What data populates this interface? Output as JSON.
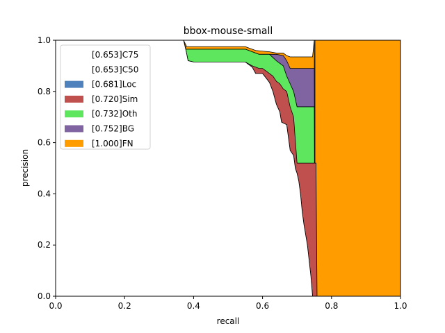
{
  "chart_data": {
    "type": "area",
    "title": "bbox-mouse-small",
    "xlabel": "recall",
    "ylabel": "precision",
    "xlim": [
      0.0,
      1.0
    ],
    "ylim": [
      0.0,
      1.0
    ],
    "x_ticks": [
      "0.0",
      "0.2",
      "0.4",
      "0.6",
      "0.8",
      "1.0"
    ],
    "y_ticks": [
      "0.0",
      "0.2",
      "0.4",
      "0.6",
      "0.8",
      "1.0"
    ],
    "legend_position": "upper-left",
    "legend": [
      {
        "label": "[0.653]C75",
        "color": "#ffffff"
      },
      {
        "label": "[0.653]C50",
        "color": "#ffffff"
      },
      {
        "label": "[0.681]Loc",
        "color": "#4f81bd"
      },
      {
        "label": "[0.720]Sim",
        "color": "#c0504d"
      },
      {
        "label": "[0.732]Oth",
        "color": "#5ee65e"
      },
      {
        "label": "[0.752]BG",
        "color": "#8064a2"
      },
      {
        "label": "[1.000]FN",
        "color": "#ff9c00"
      }
    ],
    "curves": [
      {
        "name": "[0.681]Loc",
        "color": "#4f81bd",
        "points": [
          [
            0.371,
            1.0
          ],
          [
            0.378,
            0.96
          ],
          [
            0.384,
            0.92
          ],
          [
            0.4,
            0.915
          ],
          [
            0.55,
            0.915
          ],
          [
            0.57,
            0.895
          ],
          [
            0.58,
            0.87
          ],
          [
            0.6,
            0.87
          ],
          [
            0.62,
            0.835
          ],
          [
            0.63,
            0.8
          ],
          [
            0.64,
            0.75
          ],
          [
            0.65,
            0.72
          ],
          [
            0.655,
            0.68
          ],
          [
            0.67,
            0.67
          ],
          [
            0.675,
            0.62
          ],
          [
            0.68,
            0.57
          ],
          [
            0.69,
            0.55
          ],
          [
            0.695,
            0.5
          ],
          [
            0.7,
            0.48
          ],
          [
            0.705,
            0.45
          ],
          [
            0.71,
            0.4
          ],
          [
            0.715,
            0.33
          ],
          [
            0.72,
            0.28
          ],
          [
            0.73,
            0.2
          ],
          [
            0.74,
            0.08
          ],
          [
            0.745,
            0.0
          ]
        ]
      },
      {
        "name": "[0.720]Sim",
        "color": "#c0504d",
        "points": [
          [
            0.371,
            1.0
          ],
          [
            0.378,
            0.96
          ],
          [
            0.384,
            0.92
          ],
          [
            0.4,
            0.915
          ],
          [
            0.55,
            0.915
          ],
          [
            0.57,
            0.9
          ],
          [
            0.59,
            0.89
          ],
          [
            0.6,
            0.89
          ],
          [
            0.62,
            0.87
          ],
          [
            0.63,
            0.86
          ],
          [
            0.64,
            0.84
          ],
          [
            0.65,
            0.83
          ],
          [
            0.66,
            0.81
          ],
          [
            0.67,
            0.8
          ],
          [
            0.68,
            0.74
          ],
          [
            0.69,
            0.7
          ],
          [
            0.7,
            0.52
          ],
          [
            0.755,
            0.52
          ],
          [
            0.758,
            0.0
          ]
        ]
      },
      {
        "name": "[0.732]Oth",
        "color": "#5ee65e",
        "points": [
          [
            0.371,
            1.0
          ],
          [
            0.378,
            0.965
          ],
          [
            0.55,
            0.965
          ],
          [
            0.59,
            0.945
          ],
          [
            0.62,
            0.945
          ],
          [
            0.64,
            0.92
          ],
          [
            0.66,
            0.9
          ],
          [
            0.67,
            0.86
          ],
          [
            0.68,
            0.83
          ],
          [
            0.69,
            0.8
          ],
          [
            0.7,
            0.74
          ],
          [
            0.75,
            0.74
          ],
          [
            0.752,
            0.0
          ]
        ]
      },
      {
        "name": "[0.752]BG",
        "color": "#8064a2",
        "points": [
          [
            0.371,
            1.0
          ],
          [
            0.378,
            0.965
          ],
          [
            0.55,
            0.965
          ],
          [
            0.59,
            0.945
          ],
          [
            0.62,
            0.945
          ],
          [
            0.64,
            0.945
          ],
          [
            0.66,
            0.94
          ],
          [
            0.67,
            0.92
          ],
          [
            0.68,
            0.89
          ],
          [
            0.75,
            0.89
          ],
          [
            0.752,
            0.0
          ]
        ]
      },
      {
        "name": "[1.000]FN",
        "color": "#ff9c00",
        "points": [
          [
            0.371,
            1.0
          ],
          [
            0.38,
            0.975
          ],
          [
            0.55,
            0.975
          ],
          [
            0.58,
            0.96
          ],
          [
            0.62,
            0.955
          ],
          [
            0.64,
            0.95
          ],
          [
            0.66,
            0.95
          ],
          [
            0.67,
            0.94
          ],
          [
            0.68,
            0.935
          ],
          [
            0.745,
            0.935
          ],
          [
            0.75,
            1.0
          ],
          [
            0.752,
            0.0
          ]
        ]
      },
      {
        "name": "[1.000]FN-right",
        "color": "#ff9c00",
        "points": [
          [
            0.752,
            1.0
          ],
          [
            0.755,
            0.0
          ]
        ]
      }
    ]
  }
}
